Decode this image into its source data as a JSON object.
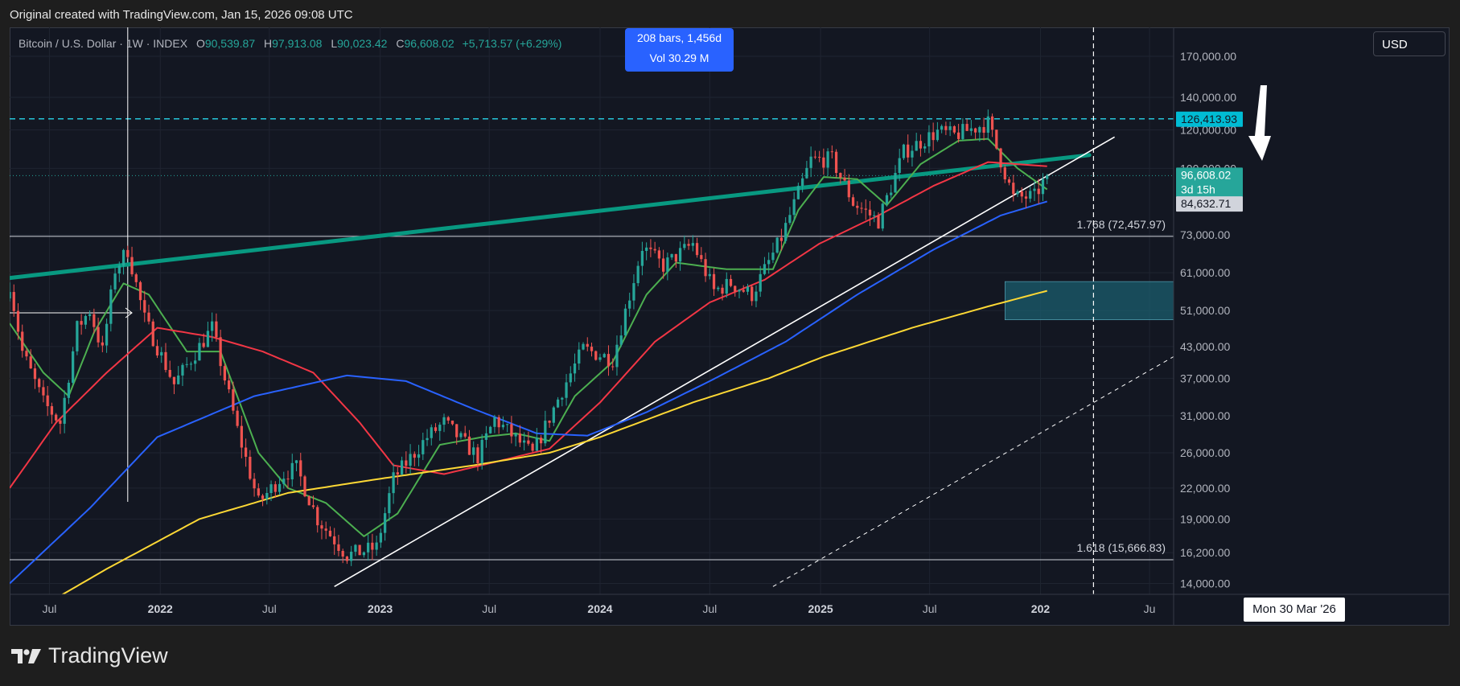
{
  "header": {
    "note": "Original created with TradingView.com, Jan 15, 2026 09:08 UTC"
  },
  "legend": {
    "symbol": "Bitcoin / U.S. Dollar · 1W · INDEX",
    "open_label": "O",
    "open": "90,539.87",
    "high_label": "H",
    "high": "97,913.08",
    "low_label": "L",
    "low": "90,023.42",
    "close_label": "C",
    "close": "96,608.02",
    "change": "+5,713.57 (+6.29%)"
  },
  "measure": {
    "bars": "208 bars, 1,456d",
    "vol": "Vol 30.29 M"
  },
  "currency_button": "USD",
  "crosshair_date": "Mon 30 Mar '26",
  "brand": {
    "name": "TradingView",
    "icon": "tradingview-logo-icon"
  },
  "chart_data": {
    "type": "candlestick",
    "timeframe": "1W",
    "y_scale": "log",
    "ylim": [
      13300,
      195000
    ],
    "xlim": [
      "2021-04-26",
      "2026-08-10"
    ],
    "x_ticks": [
      {
        "date": "2021-07-01",
        "label": "Jul"
      },
      {
        "date": "2022-01-01",
        "label": "2022",
        "bold": true
      },
      {
        "date": "2022-07-01",
        "label": "Jul"
      },
      {
        "date": "2023-01-01",
        "label": "2023",
        "bold": true
      },
      {
        "date": "2023-07-01",
        "label": "Jul"
      },
      {
        "date": "2024-01-01",
        "label": "2024",
        "bold": true
      },
      {
        "date": "2024-07-01",
        "label": "Jul"
      },
      {
        "date": "2025-01-01",
        "label": "2025",
        "bold": true
      },
      {
        "date": "2025-07-01",
        "label": "Jul"
      },
      {
        "date": "2026-01-01",
        "label": "202",
        "bold": true
      },
      {
        "date": "2026-07-01",
        "label": "Ju"
      }
    ],
    "y_ticks": [
      170000,
      140000,
      120000,
      100000,
      73000,
      61000,
      51000,
      43000,
      37000,
      31000,
      26000,
      22000,
      19000,
      16200,
      14000
    ],
    "y_tick_labels": [
      "170,000.00",
      "140,000.00",
      "120,000.00",
      "100,000.00",
      "73,000.00",
      "61,000.00",
      "51,000.00",
      "43,000.00",
      "37,000.00",
      "31,000.00",
      "26,000.00",
      "22,000.00",
      "19,000.00",
      "16,200.00",
      "14,000.00"
    ],
    "price_key_points": [
      [
        "2021-04-26",
        58000
      ],
      [
        "2021-05-17",
        42000
      ],
      [
        "2021-06-21",
        33000
      ],
      [
        "2021-07-19",
        30000
      ],
      [
        "2021-08-16",
        47000
      ],
      [
        "2021-09-06",
        51000
      ],
      [
        "2021-09-27",
        42000
      ],
      [
        "2021-10-18",
        62000
      ],
      [
        "2021-11-08",
        68000
      ],
      [
        "2021-12-06",
        49000
      ],
      [
        "2022-01-24",
        36000
      ],
      [
        "2022-03-28",
        47000
      ],
      [
        "2022-05-09",
        29000
      ],
      [
        "2022-06-13",
        20500
      ],
      [
        "2022-07-25",
        23500
      ],
      [
        "2022-08-15",
        24200
      ],
      [
        "2022-09-19",
        19000
      ],
      [
        "2022-11-07",
        16000
      ],
      [
        "2022-12-26",
        16600
      ],
      [
        "2023-01-23",
        23000
      ],
      [
        "2023-03-20",
        28000
      ],
      [
        "2023-04-17",
        30000
      ],
      [
        "2023-06-12",
        25500
      ],
      [
        "2023-07-10",
        30500
      ],
      [
        "2023-09-11",
        25800
      ],
      [
        "2023-10-30",
        35000
      ],
      [
        "2023-12-04",
        42500
      ],
      [
        "2024-01-22",
        40500
      ],
      [
        "2024-03-11",
        69000
      ],
      [
        "2024-04-15",
        63000
      ],
      [
        "2024-06-03",
        70000
      ],
      [
        "2024-07-08",
        56000
      ],
      [
        "2024-08-05",
        58000
      ],
      [
        "2024-09-09",
        55000
      ],
      [
        "2024-10-28",
        72000
      ],
      [
        "2024-12-16",
        104000
      ],
      [
        "2025-01-20",
        104500
      ],
      [
        "2025-02-24",
        85000
      ],
      [
        "2025-04-07",
        78000
      ],
      [
        "2025-05-19",
        108000
      ],
      [
        "2025-07-14",
        119000
      ],
      [
        "2025-08-11",
        117000
      ],
      [
        "2025-10-06",
        124000
      ],
      [
        "2025-11-17",
        87000
      ],
      [
        "2025-12-22",
        87500
      ],
      [
        "2026-01-12",
        96608
      ]
    ],
    "moving_averages": [
      {
        "color": "#4caf50",
        "points": [
          [
            "2021-04-26",
            48000
          ],
          [
            "2021-06-21",
            38000
          ],
          [
            "2021-08-02",
            34000
          ],
          [
            "2021-09-13",
            46000
          ],
          [
            "2021-11-01",
            58000
          ],
          [
            "2021-12-13",
            55000
          ],
          [
            "2022-02-14",
            42000
          ],
          [
            "2022-04-11",
            42000
          ],
          [
            "2022-06-13",
            26000
          ],
          [
            "2022-08-01",
            22000
          ],
          [
            "2022-10-03",
            20500
          ],
          [
            "2022-12-05",
            17500
          ],
          [
            "2023-01-30",
            19500
          ],
          [
            "2023-04-10",
            27000
          ],
          [
            "2023-06-19",
            28000
          ],
          [
            "2023-08-14",
            28500
          ],
          [
            "2023-10-09",
            27500
          ],
          [
            "2023-11-20",
            34000
          ],
          [
            "2024-01-22",
            40000
          ],
          [
            "2024-03-18",
            55000
          ],
          [
            "2024-05-06",
            64000
          ],
          [
            "2024-07-29",
            62000
          ],
          [
            "2024-10-14",
            62000
          ],
          [
            "2024-11-25",
            82000
          ],
          [
            "2025-01-06",
            96000
          ],
          [
            "2025-03-03",
            95000
          ],
          [
            "2025-04-21",
            84000
          ],
          [
            "2025-06-16",
            102000
          ],
          [
            "2025-08-18",
            114000
          ],
          [
            "2025-10-06",
            115000
          ],
          [
            "2025-11-24",
            100000
          ],
          [
            "2026-01-12",
            90500
          ]
        ]
      },
      {
        "color": "#f23645",
        "points": [
          [
            "2021-04-26",
            22000
          ],
          [
            "2021-07-12",
            30000
          ],
          [
            "2021-10-04",
            38000
          ],
          [
            "2021-12-27",
            47000
          ],
          [
            "2022-03-28",
            45000
          ],
          [
            "2022-06-20",
            42000
          ],
          [
            "2022-09-12",
            38000
          ],
          [
            "2022-11-28",
            30000
          ],
          [
            "2023-01-23",
            24500
          ],
          [
            "2023-04-17",
            23500
          ],
          [
            "2023-07-17",
            25000
          ],
          [
            "2023-10-09",
            26500
          ],
          [
            "2024-01-01",
            33000
          ],
          [
            "2024-04-01",
            44000
          ],
          [
            "2024-07-01",
            53000
          ],
          [
            "2024-09-30",
            59000
          ],
          [
            "2024-12-30",
            70000
          ],
          [
            "2025-04-07",
            80000
          ],
          [
            "2025-07-07",
            92000
          ],
          [
            "2025-10-06",
            103000
          ],
          [
            "2026-01-12",
            101000
          ]
        ]
      },
      {
        "color": "#2962ff",
        "points": [
          [
            "2021-04-26",
            14000
          ],
          [
            "2021-09-06",
            20000
          ],
          [
            "2021-12-27",
            28000
          ],
          [
            "2022-06-06",
            34000
          ],
          [
            "2022-11-07",
            37500
          ],
          [
            "2023-02-13",
            36500
          ],
          [
            "2023-06-05",
            32000
          ],
          [
            "2023-09-18",
            28500
          ],
          [
            "2023-12-11",
            28200
          ],
          [
            "2024-03-18",
            31500
          ],
          [
            "2024-07-01",
            36500
          ],
          [
            "2024-11-04",
            44000
          ],
          [
            "2025-03-03",
            55000
          ],
          [
            "2025-07-07",
            68000
          ],
          [
            "2025-10-27",
            80000
          ],
          [
            "2026-01-12",
            85500
          ]
        ]
      },
      {
        "color": "#fdd835",
        "points": [
          [
            "2021-04-26",
            11500
          ],
          [
            "2021-10-04",
            15000
          ],
          [
            "2022-03-07",
            19000
          ],
          [
            "2022-08-01",
            21500
          ],
          [
            "2023-01-02",
            23000
          ],
          [
            "2023-06-05",
            24500
          ],
          [
            "2023-10-09",
            26000
          ],
          [
            "2024-01-01",
            28000
          ],
          [
            "2024-06-03",
            33000
          ],
          [
            "2024-10-07",
            37000
          ],
          [
            "2025-01-06",
            41000
          ],
          [
            "2025-06-02",
            47000
          ],
          [
            "2025-10-06",
            52000
          ],
          [
            "2026-01-12",
            56000
          ]
        ]
      }
    ],
    "trendlines": [
      {
        "color": "#089981",
        "style": "thick",
        "from": [
          "2021-04-26",
          59500
        ],
        "to": [
          "2026-03-23",
          106500
        ]
      },
      {
        "color": "#ffffff",
        "style": "solid",
        "from": [
          "2022-10-17",
          13800
        ],
        "to": [
          "2026-05-04",
          116000
        ]
      },
      {
        "color": "#ffffff",
        "style": "dashed",
        "from": [
          "2024-10-14",
          13800
        ],
        "to": [
          "2026-08-10",
          41000
        ]
      }
    ],
    "horizontal_levels": [
      {
        "value": 126413.93,
        "label": "126,413.93",
        "color": "#26c6da",
        "style": "dashed"
      },
      {
        "value": 72457.97,
        "label": "1.768 (72,457.97)",
        "color": "#d1d4dc",
        "style": "solid"
      },
      {
        "value": 15666.83,
        "label": "1.618 (15,666.83)",
        "color": "#d1d4dc",
        "style": "solid"
      }
    ],
    "price_tags": [
      {
        "value": 126413.93,
        "label": "126,413.93",
        "color": "#00bcd4"
      },
      {
        "value": 96608.02,
        "label": "96,608.02",
        "sub": "3d 15h",
        "color": "#26a69a"
      },
      {
        "value": 84632.71,
        "label": "84,632.71",
        "color": "#d1d4dc"
      }
    ],
    "zone": {
      "from": "2025-11-03",
      "to": "2026-08-10",
      "top": 58500,
      "bottom": 48800,
      "color": "#1b5e6e"
    },
    "crosshair": {
      "date": "2026-03-30"
    }
  }
}
